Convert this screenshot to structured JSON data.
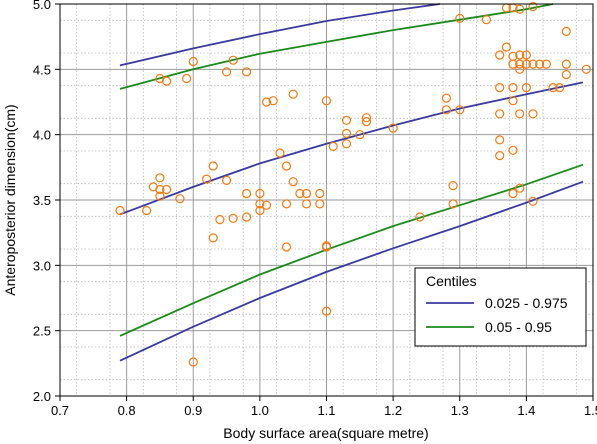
{
  "chart_data": {
    "type": "scatter",
    "title": "",
    "xlabel": "Body surface area(square metre)",
    "ylabel": "Anteroposterior dimension(cm)",
    "xlim": [
      0.7,
      1.5
    ],
    "ylim": [
      2.0,
      5.0
    ],
    "xticks": [
      "0.7",
      "0.8",
      "0.9",
      "1.0",
      "1.1",
      "1.2",
      "1.3",
      "1.4",
      "1.5"
    ],
    "yticks": [
      "2.0",
      "2.5",
      "3.0",
      "3.5",
      "4.0",
      "4.5",
      "5.0"
    ],
    "minor_grid": true,
    "legend": {
      "title": "Centiles",
      "position": "bottom-right",
      "entries": [
        {
          "label": "0.025 - 0.975",
          "color": "#3a3aa0"
        },
        {
          "label": "0.05 - 0.95",
          "color": "#1a8a1a"
        }
      ]
    },
    "colors": {
      "points": "#f07a14",
      "median": "#3a3aa0",
      "band_outer": "#3a3aa0",
      "band_inner": "#1a8a1a"
    },
    "points": [
      [
        0.79,
        3.42
      ],
      [
        0.83,
        3.42
      ],
      [
        0.84,
        3.6
      ],
      [
        0.85,
        3.53
      ],
      [
        0.85,
        3.58
      ],
      [
        0.85,
        3.67
      ],
      [
        0.86,
        3.58
      ],
      [
        0.85,
        4.43
      ],
      [
        0.86,
        4.41
      ],
      [
        0.88,
        3.51
      ],
      [
        0.89,
        4.43
      ],
      [
        0.9,
        4.56
      ],
      [
        0.9,
        2.26
      ],
      [
        0.92,
        3.66
      ],
      [
        0.93,
        3.76
      ],
      [
        0.93,
        3.21
      ],
      [
        0.94,
        3.35
      ],
      [
        0.95,
        3.65
      ],
      [
        0.96,
        3.36
      ],
      [
        0.96,
        4.57
      ],
      [
        0.95,
        4.48
      ],
      [
        0.98,
        3.37
      ],
      [
        0.98,
        3.55
      ],
      [
        0.98,
        4.48
      ],
      [
        1.0,
        3.42
      ],
      [
        1.0,
        3.47
      ],
      [
        1.0,
        3.55
      ],
      [
        1.01,
        3.46
      ],
      [
        1.01,
        4.25
      ],
      [
        1.02,
        4.26
      ],
      [
        1.03,
        3.86
      ],
      [
        1.04,
        3.76
      ],
      [
        1.04,
        3.47
      ],
      [
        1.04,
        3.14
      ],
      [
        1.05,
        3.64
      ],
      [
        1.05,
        4.31
      ],
      [
        1.06,
        3.55
      ],
      [
        1.07,
        3.47
      ],
      [
        1.07,
        3.55
      ],
      [
        1.09,
        3.55
      ],
      [
        1.09,
        3.47
      ],
      [
        1.1,
        4.26
      ],
      [
        1.1,
        3.14
      ],
      [
        1.1,
        3.15
      ],
      [
        1.1,
        2.65
      ],
      [
        1.11,
        3.91
      ],
      [
        1.13,
        3.93
      ],
      [
        1.13,
        4.01
      ],
      [
        1.13,
        4.11
      ],
      [
        1.15,
        4.0
      ],
      [
        1.16,
        4.1
      ],
      [
        1.16,
        4.13
      ],
      [
        1.2,
        4.05
      ],
      [
        1.24,
        3.37
      ],
      [
        1.28,
        4.19
      ],
      [
        1.28,
        4.28
      ],
      [
        1.29,
        3.61
      ],
      [
        1.29,
        3.47
      ],
      [
        1.3,
        4.19
      ],
      [
        1.3,
        4.89
      ],
      [
        1.34,
        4.88
      ],
      [
        1.36,
        4.36
      ],
      [
        1.36,
        4.16
      ],
      [
        1.36,
        3.96
      ],
      [
        1.36,
        3.84
      ],
      [
        1.36,
        4.61
      ],
      [
        1.37,
        4.67
      ],
      [
        1.37,
        4.97
      ],
      [
        1.38,
        4.97
      ],
      [
        1.38,
        4.6
      ],
      [
        1.38,
        4.54
      ],
      [
        1.38,
        4.36
      ],
      [
        1.38,
        4.26
      ],
      [
        1.38,
        3.88
      ],
      [
        1.39,
        4.96
      ],
      [
        1.39,
        4.61
      ],
      [
        1.39,
        4.54
      ],
      [
        1.39,
        4.5
      ],
      [
        1.39,
        4.16
      ],
      [
        1.39,
        3.59
      ],
      [
        1.38,
        3.55
      ],
      [
        1.4,
        4.61
      ],
      [
        1.4,
        4.54
      ],
      [
        1.4,
        4.36
      ],
      [
        1.41,
        4.98
      ],
      [
        1.41,
        4.54
      ],
      [
        1.41,
        4.16
      ],
      [
        1.41,
        3.49
      ],
      [
        1.42,
        4.54
      ],
      [
        1.43,
        4.54
      ],
      [
        1.44,
        4.36
      ],
      [
        1.45,
        4.36
      ],
      [
        1.46,
        4.79
      ],
      [
        1.46,
        4.54
      ],
      [
        1.46,
        4.46
      ],
      [
        1.49,
        4.5
      ]
    ],
    "series": [
      {
        "name": "0.025 - 0.975",
        "role": "upper",
        "x": [
          0.79,
          0.9,
          1.0,
          1.1,
          1.2,
          1.27
        ],
        "y": [
          4.53,
          4.66,
          4.77,
          4.87,
          4.95,
          5.0
        ]
      },
      {
        "name": "0.05 - 0.95",
        "role": "upper",
        "x": [
          0.79,
          0.9,
          1.0,
          1.1,
          1.2,
          1.3,
          1.4,
          1.44
        ],
        "y": [
          4.35,
          4.5,
          4.62,
          4.71,
          4.8,
          4.88,
          4.96,
          5.0
        ]
      },
      {
        "name": "0.025 - 0.975",
        "role": "median",
        "x": [
          0.79,
          0.9,
          1.0,
          1.1,
          1.2,
          1.3,
          1.4,
          1.485
        ],
        "y": [
          3.39,
          3.6,
          3.78,
          3.93,
          4.07,
          4.2,
          4.31,
          4.4
        ]
      },
      {
        "name": "0.05 - 0.95",
        "role": "lower",
        "x": [
          0.79,
          0.9,
          1.0,
          1.1,
          1.2,
          1.3,
          1.4,
          1.485
        ],
        "y": [
          2.46,
          2.71,
          2.93,
          3.12,
          3.3,
          3.46,
          3.62,
          3.77
        ]
      },
      {
        "name": "0.025 - 0.975",
        "role": "lower",
        "x": [
          0.79,
          0.9,
          1.0,
          1.1,
          1.2,
          1.3,
          1.4,
          1.485
        ],
        "y": [
          2.27,
          2.53,
          2.75,
          2.95,
          3.13,
          3.3,
          3.48,
          3.64
        ]
      }
    ]
  }
}
